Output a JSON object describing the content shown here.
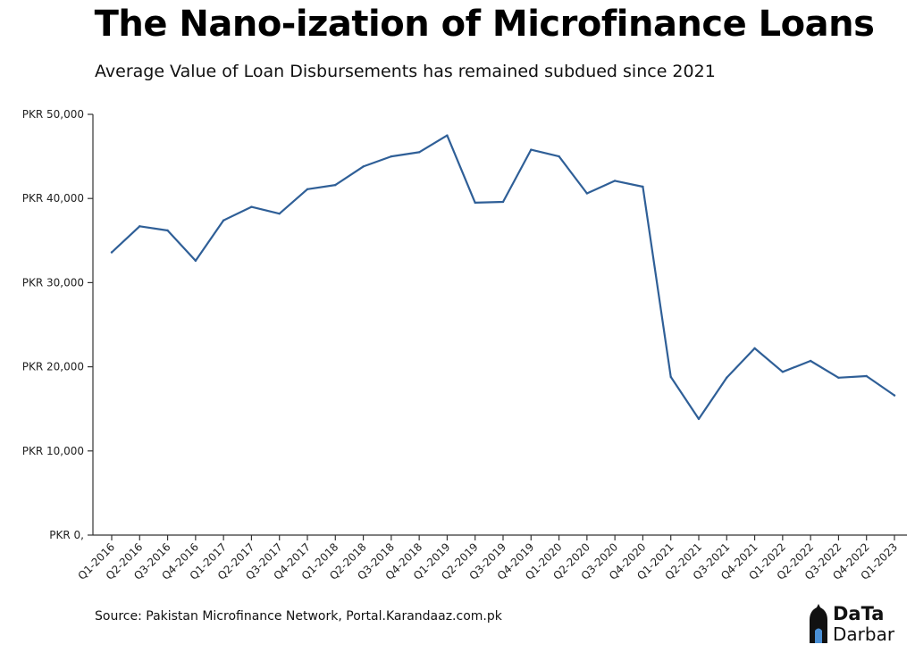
{
  "title": "The Nano-ization of Microfinance Loans",
  "subtitle": "Average Value of Loan Disbursements has remained subdued since 2021",
  "source": "Source: Pakistan Microfinance Network, Portal.Karandaaz.com.pk",
  "logo": {
    "line1": "DaTa",
    "line2": "Darbar"
  },
  "colors": {
    "line": "#2f5f97",
    "axis": "#333333",
    "logo_accent": "#4a8fd4"
  },
  "chart_data": {
    "type": "line",
    "title": "The Nano-ization of Microfinance Loans",
    "subtitle": "Average Value of Loan Disbursements has remained subdued since 2021",
    "xlabel": "",
    "ylabel": "",
    "ylim": [
      0,
      50000
    ],
    "grid": false,
    "yticks": [
      0,
      10000,
      20000,
      30000,
      40000,
      50000
    ],
    "ytick_labels": [
      "PKR 0,",
      "PKR 10,000",
      "PKR 20,000",
      "PKR 30,000",
      "PKR 40,000",
      "PKR 50,000"
    ],
    "categories": [
      "Q1-2016",
      "Q2-2016",
      "Q3-2016",
      "Q4-2016",
      "Q1-2017",
      "Q2-2017",
      "Q3-2017",
      "Q4-2017",
      "Q1-2018",
      "Q2-2018",
      "Q3-2018",
      "Q4-2018",
      "Q1-2019",
      "Q2-2019",
      "Q3-2019",
      "Q4-2019",
      "Q1-2020",
      "Q2-2020",
      "Q3-2020",
      "Q4-2020",
      "Q1-2021",
      "Q2-2021",
      "Q3-2021",
      "Q4-2021",
      "Q1-2022",
      "Q2-2022",
      "Q3-2022",
      "Q4-2022",
      "Q1-2023"
    ],
    "values": [
      33600,
      36700,
      36200,
      32600,
      37400,
      39000,
      38200,
      41100,
      41600,
      43800,
      45000,
      45500,
      47500,
      39500,
      39600,
      45800,
      45000,
      40600,
      42100,
      41400,
      18800,
      13800,
      18700,
      22200,
      19400,
      20700,
      18700,
      18900,
      16600
    ]
  }
}
